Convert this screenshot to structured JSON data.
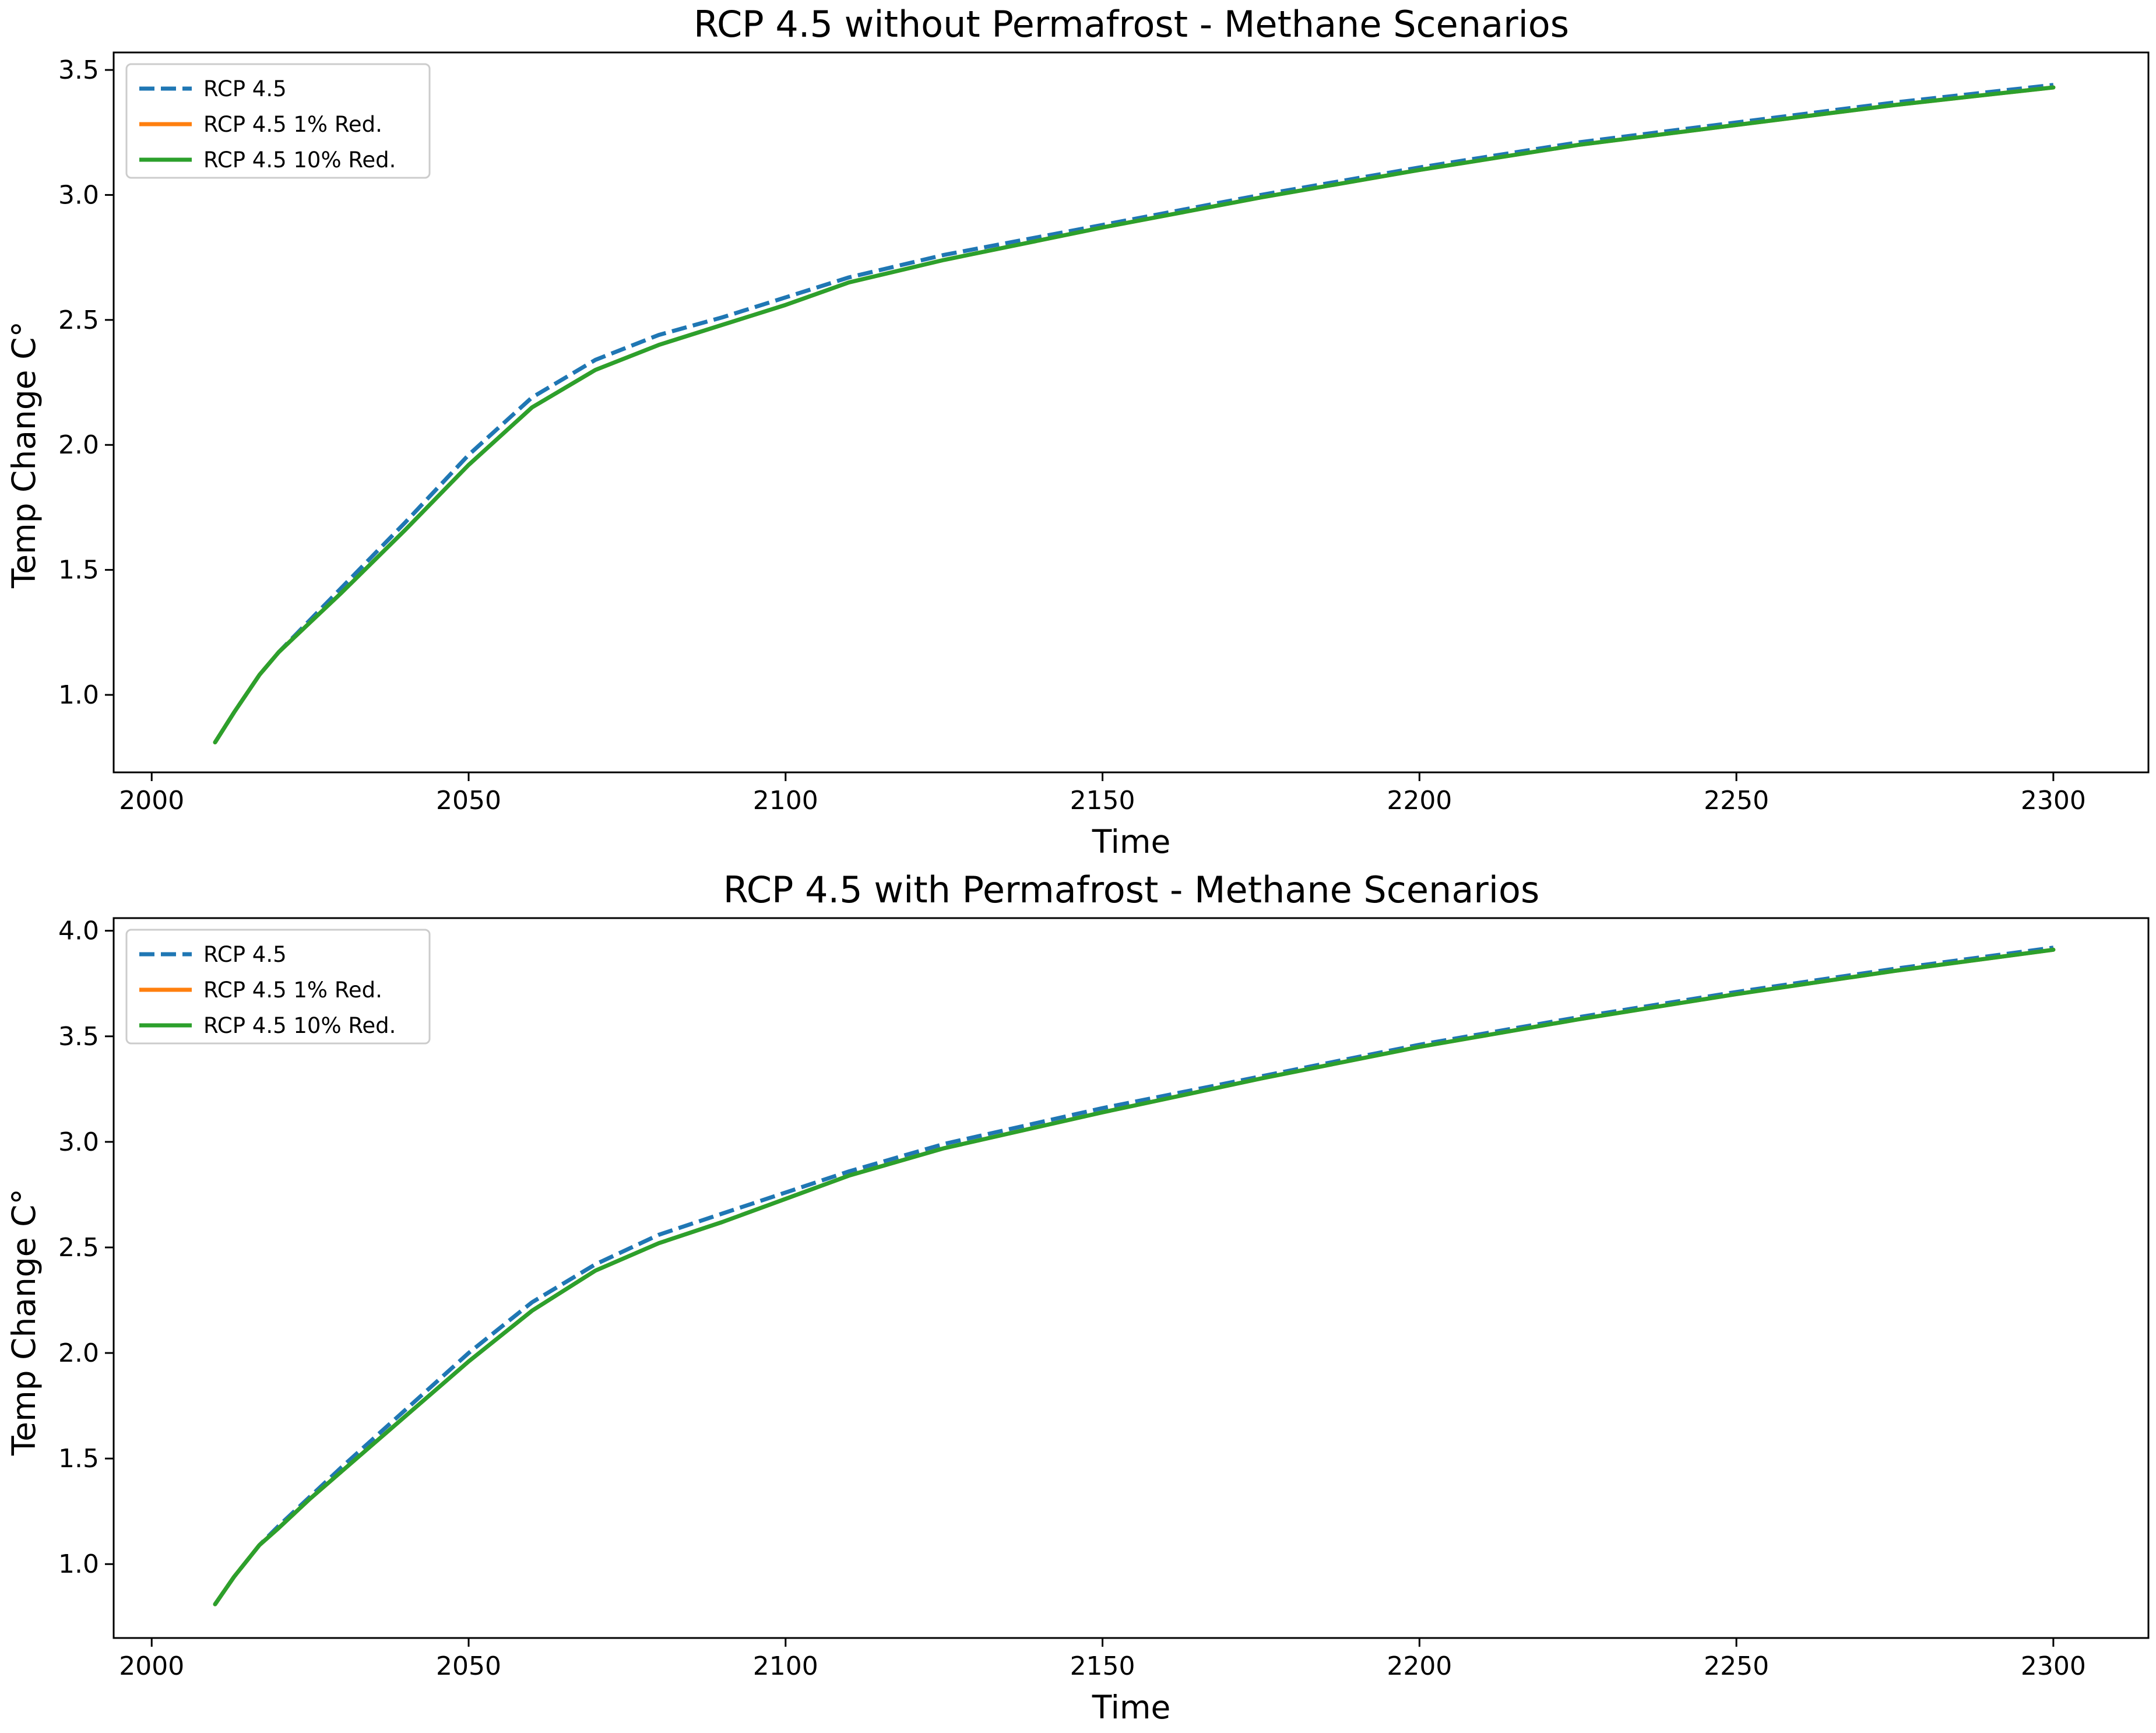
{
  "chart_data": [
    {
      "type": "line",
      "title": "RCP 4.5 without Permafrost - Methane Scenarios",
      "xlabel": "Time",
      "ylabel": "Temp Change C°",
      "xlim": [
        1994,
        2315
      ],
      "ylim": [
        0.69,
        3.57
      ],
      "xticks": [
        2000,
        2050,
        2100,
        2150,
        2200,
        2250,
        2300
      ],
      "yticks": [
        1.0,
        1.5,
        2.0,
        2.5,
        3.0,
        3.5
      ],
      "xtick_labels": [
        "2000",
        "2050",
        "2100",
        "2150",
        "2200",
        "2250",
        "2300"
      ],
      "ytick_labels": [
        "1.0",
        "1.5",
        "2.0",
        "2.5",
        "3.0",
        "3.5"
      ],
      "grid": false,
      "legend": "top-left",
      "series": [
        {
          "name": "RCP 4.5",
          "color": "#1f77b4",
          "style": "dashed",
          "x": [
            2010,
            2013,
            2017,
            2020,
            2025,
            2030,
            2040,
            2050,
            2060,
            2070,
            2080,
            2090,
            2100,
            2110,
            2125,
            2150,
            2175,
            2200,
            2225,
            2250,
            2275,
            2300
          ],
          "y": [
            0.81,
            0.93,
            1.08,
            1.17,
            1.3,
            1.43,
            1.69,
            1.96,
            2.19,
            2.34,
            2.44,
            2.51,
            2.59,
            2.67,
            2.76,
            2.88,
            3.0,
            3.11,
            3.21,
            3.29,
            3.37,
            3.44
          ]
        },
        {
          "name": "RCP 4.5 1% Red.",
          "color": "#ff7f0e",
          "style": "solid",
          "x": [
            2010,
            2013,
            2017,
            2020,
            2025,
            2030,
            2040,
            2050,
            2060,
            2070,
            2080,
            2090,
            2100,
            2110,
            2125,
            2150,
            2175,
            2200,
            2225,
            2250,
            2275,
            2300
          ],
          "y": [
            0.81,
            0.93,
            1.08,
            1.17,
            1.29,
            1.41,
            1.66,
            1.92,
            2.15,
            2.3,
            2.4,
            2.48,
            2.56,
            2.65,
            2.74,
            2.87,
            2.99,
            3.1,
            3.2,
            3.28,
            3.36,
            3.43
          ]
        },
        {
          "name": "RCP 4.5 10% Red.",
          "color": "#2ca02c",
          "style": "solid",
          "x": [
            2010,
            2013,
            2017,
            2020,
            2025,
            2030,
            2040,
            2050,
            2060,
            2070,
            2080,
            2090,
            2100,
            2110,
            2125,
            2150,
            2175,
            2200,
            2225,
            2250,
            2275,
            2300
          ],
          "y": [
            0.81,
            0.93,
            1.08,
            1.17,
            1.29,
            1.41,
            1.66,
            1.92,
            2.15,
            2.3,
            2.4,
            2.48,
            2.56,
            2.65,
            2.74,
            2.87,
            2.99,
            3.1,
            3.2,
            3.28,
            3.36,
            3.43
          ]
        }
      ]
    },
    {
      "type": "line",
      "title": "RCP 4.5 with Permafrost - Methane Scenarios",
      "xlabel": "Time",
      "ylabel": "Temp Change C°",
      "xlim": [
        1994,
        2315
      ],
      "ylim": [
        0.65,
        4.06
      ],
      "xticks": [
        2000,
        2050,
        2100,
        2150,
        2200,
        2250,
        2300
      ],
      "yticks": [
        1.0,
        1.5,
        2.0,
        2.5,
        3.0,
        3.5,
        4.0
      ],
      "xtick_labels": [
        "2000",
        "2050",
        "2100",
        "2150",
        "2200",
        "2250",
        "2300"
      ],
      "ytick_labels": [
        "1.0",
        "1.5",
        "2.0",
        "2.5",
        "3.0",
        "3.5",
        "4.0"
      ],
      "grid": false,
      "legend": "top-left",
      "series": [
        {
          "name": "RCP 4.5",
          "color": "#1f77b4",
          "style": "dashed",
          "x": [
            2010,
            2013,
            2017,
            2020,
            2025,
            2030,
            2040,
            2050,
            2060,
            2070,
            2080,
            2090,
            2100,
            2110,
            2125,
            2150,
            2175,
            2200,
            2225,
            2250,
            2275,
            2300
          ],
          "y": [
            0.81,
            0.94,
            1.09,
            1.18,
            1.32,
            1.46,
            1.73,
            2.0,
            2.24,
            2.42,
            2.56,
            2.66,
            2.76,
            2.86,
            2.99,
            3.16,
            3.31,
            3.46,
            3.59,
            3.71,
            3.82,
            3.92
          ]
        },
        {
          "name": "RCP 4.5 1% Red.",
          "color": "#ff7f0e",
          "style": "solid",
          "x": [
            2010,
            2013,
            2017,
            2020,
            2025,
            2030,
            2040,
            2050,
            2060,
            2070,
            2080,
            2090,
            2100,
            2110,
            2125,
            2150,
            2175,
            2200,
            2225,
            2250,
            2275,
            2300
          ],
          "y": [
            0.81,
            0.94,
            1.09,
            1.17,
            1.31,
            1.44,
            1.7,
            1.96,
            2.2,
            2.39,
            2.52,
            2.62,
            2.73,
            2.84,
            2.97,
            3.14,
            3.3,
            3.45,
            3.58,
            3.7,
            3.81,
            3.91
          ]
        },
        {
          "name": "RCP 4.5 10% Red.",
          "color": "#2ca02c",
          "style": "solid",
          "x": [
            2010,
            2013,
            2017,
            2020,
            2025,
            2030,
            2040,
            2050,
            2060,
            2070,
            2080,
            2090,
            2100,
            2110,
            2125,
            2150,
            2175,
            2200,
            2225,
            2250,
            2275,
            2300
          ],
          "y": [
            0.81,
            0.94,
            1.09,
            1.17,
            1.31,
            1.44,
            1.7,
            1.96,
            2.2,
            2.39,
            2.52,
            2.62,
            2.73,
            2.84,
            2.97,
            3.14,
            3.3,
            3.45,
            3.58,
            3.7,
            3.81,
            3.91
          ]
        }
      ]
    }
  ]
}
